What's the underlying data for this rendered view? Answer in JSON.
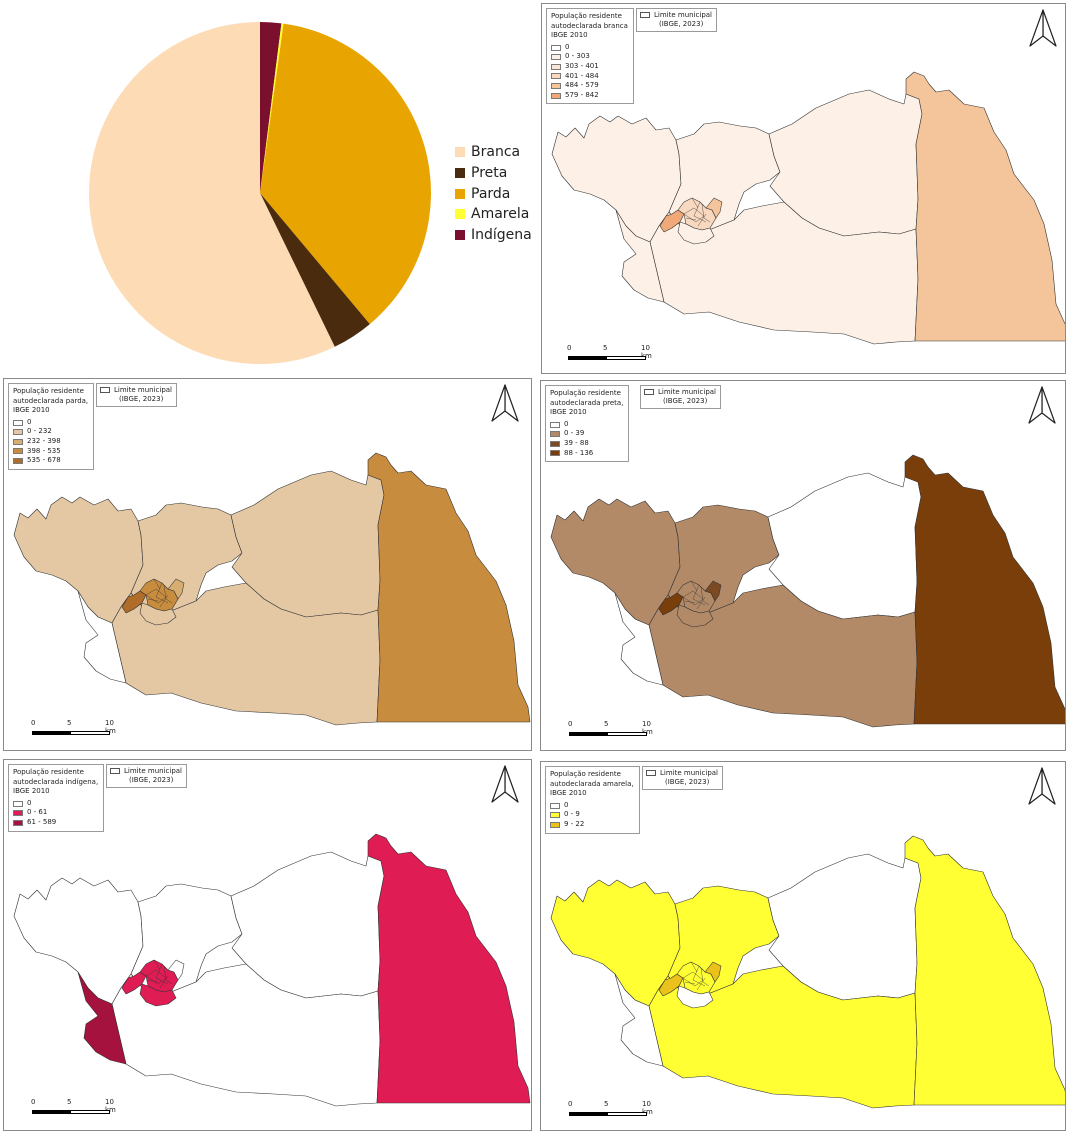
{
  "chart_data": {
    "type": "pie",
    "series": [
      {
        "values": [
          57.2,
          3.9,
          36.7,
          0.2,
          2.0
        ]
      }
    ],
    "categories": [
      "Branca",
      "Preta",
      "Parda",
      "Amarela",
      "Indígena"
    ],
    "colors": [
      "#fddbb4",
      "#4a2b0e",
      "#e8a400",
      "#ffff33",
      "#7a0f2e"
    ],
    "legend_placement": "right"
  },
  "panels": [
    {
      "title_lines": [
        "População residente",
        "autodeclarada branca",
        "IBGE 2010"
      ],
      "legend": [
        {
          "label": "0",
          "color": "#ffffff"
        },
        {
          "label": "0 - 303",
          "color": "#fdf1e7"
        },
        {
          "label": "303 - 401",
          "color": "#fbe5d4"
        },
        {
          "label": "401 - 484",
          "color": "#f8d8be"
        },
        {
          "label": "484 - 579",
          "color": "#f4c49b"
        },
        {
          "label": "579 - 842",
          "color": "#f0a878"
        }
      ],
      "region_colors": {
        "west": "#fdf1e7",
        "middle": "#fdf1e7",
        "north": "#fdf1e7",
        "south": "#fdf1e7",
        "southwest": "#fdf1e7",
        "east": "#f4c49b",
        "center_a": "#f0a878",
        "center_b": "#f8d8be",
        "center_c": "#f4c49b",
        "center_d": "#fdf1e7"
      }
    },
    {
      "title_lines": [
        "População residente",
        "autodeclarada parda,",
        "IBGE 2010"
      ],
      "legend": [
        {
          "label": "0",
          "color": "#ffffff"
        },
        {
          "label": "0 - 232",
          "color": "#e4c8a4"
        },
        {
          "label": "232 - 398",
          "color": "#d8ad72"
        },
        {
          "label": "398 - 535",
          "color": "#c88c3e"
        },
        {
          "label": "535 - 678",
          "color": "#b06d2a"
        }
      ],
      "region_colors": {
        "west": "#e4c8a4",
        "middle": "#e4c8a4",
        "north": "#e4c8a4",
        "south": "#e4c8a4",
        "southwest": "#ffffff",
        "east": "#c88c3e",
        "center_a": "#b06d2a",
        "center_b": "#c88c3e",
        "center_c": "#d8ad72",
        "center_d": "#e4c8a4"
      }
    },
    {
      "title_lines": [
        "População residente",
        "autodeclarada preta,",
        "IBGE 2010"
      ],
      "legend": [
        {
          "label": "0",
          "color": "#ffffff"
        },
        {
          "label": "0 - 39",
          "color": "#b38a67"
        },
        {
          "label": "39 - 88",
          "color": "#7b4a22"
        },
        {
          "label": "88 - 136",
          "color": "#7a3e0a"
        }
      ],
      "region_colors": {
        "west": "#b38a67",
        "middle": "#b38a67",
        "north": "#ffffff",
        "south": "#b38a67",
        "southwest": "#ffffff",
        "east": "#7a3e0a",
        "center_a": "#7a3e0a",
        "center_b": "#b38a67",
        "center_c": "#7b4a22",
        "center_d": "#b38a67"
      }
    },
    {
      "title_lines": [
        "População residente",
        "autodeclarada indígena,",
        "IBGE 2010"
      ],
      "legend": [
        {
          "label": "0",
          "color": "#ffffff"
        },
        {
          "label": "0 - 61",
          "color": "#e01c55"
        },
        {
          "label": "61 - 589",
          "color": "#a5123d"
        }
      ],
      "region_colors": {
        "west": "#ffffff",
        "middle": "#ffffff",
        "north": "#ffffff",
        "south": "#ffffff",
        "southwest": "#a5123d",
        "east": "#e01c55",
        "center_a": "#e01c55",
        "center_b": "#e01c55",
        "center_c": "#ffffff",
        "center_d": "#e01c55"
      }
    },
    {
      "title_lines": [
        "População residente",
        "autodeclarada amarela,",
        "IBGE 2010"
      ],
      "legend": [
        {
          "label": "0",
          "color": "#ffffff"
        },
        {
          "label": "0 - 9",
          "color": "#ffff33"
        },
        {
          "label": "9 - 22",
          "color": "#ebc21c"
        }
      ],
      "region_colors": {
        "west": "#ffff33",
        "middle": "#ffff33",
        "north": "#ffffff",
        "south": "#ffff33",
        "southwest": "#ffffff",
        "east": "#ffff33",
        "center_a": "#ebc21c",
        "center_b": "#ffff33",
        "center_c": "#ebc21c",
        "center_d": "#ffffff"
      }
    }
  ],
  "boundary_legend": {
    "line1": "Limite municipal",
    "line2": "(IBGE, 2023)"
  },
  "scale": {
    "labels": [
      "0",
      "5",
      "10 km"
    ]
  }
}
